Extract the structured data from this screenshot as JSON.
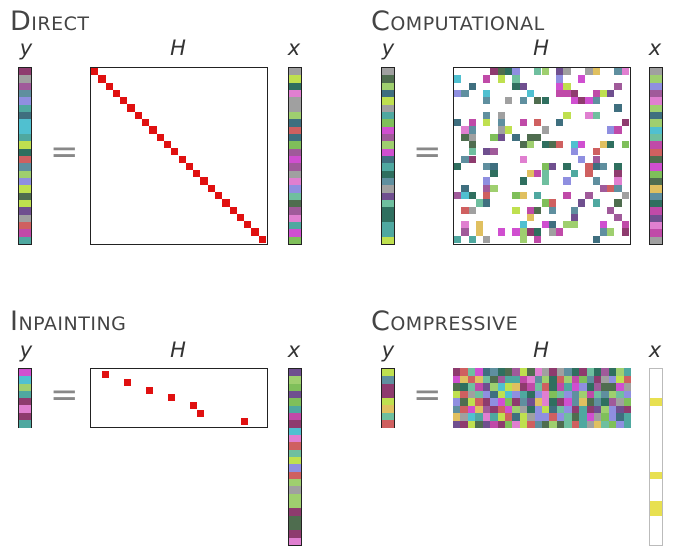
{
  "panels": {
    "direct": {
      "title": "Direct",
      "y_label": "y",
      "h_label": "H",
      "x_label": "x",
      "equals": "="
    },
    "computational": {
      "title": "Computational",
      "y_label": "y",
      "h_label": "H",
      "x_label": "x",
      "equals": "="
    },
    "inpainting": {
      "title": "Inpainting",
      "y_label": "y",
      "h_label": "H",
      "x_label": "x",
      "equals": "="
    },
    "compressive": {
      "title": "Compressive",
      "y_label": "y",
      "h_label": "H",
      "x_label": "x",
      "equals": "="
    }
  },
  "colors": {
    "diagonal": "#e01010",
    "palette": [
      "#8e3b6e",
      "#4f6d4f",
      "#c04aa8",
      "#7fbf5a",
      "#5f8f9f",
      "#a05a9a",
      "#3f6f7f",
      "#9fcf6f",
      "#d04fd0",
      "#6f4f8f",
      "#4fa8a0",
      "#e07fd0",
      "#2f6f5f",
      "#bfe04f",
      "#8f8fe0",
      "#50c0d0",
      "#cf6060",
      "#6fbf9f",
      "#a0a0a0",
      "#e0c060"
    ]
  }
}
